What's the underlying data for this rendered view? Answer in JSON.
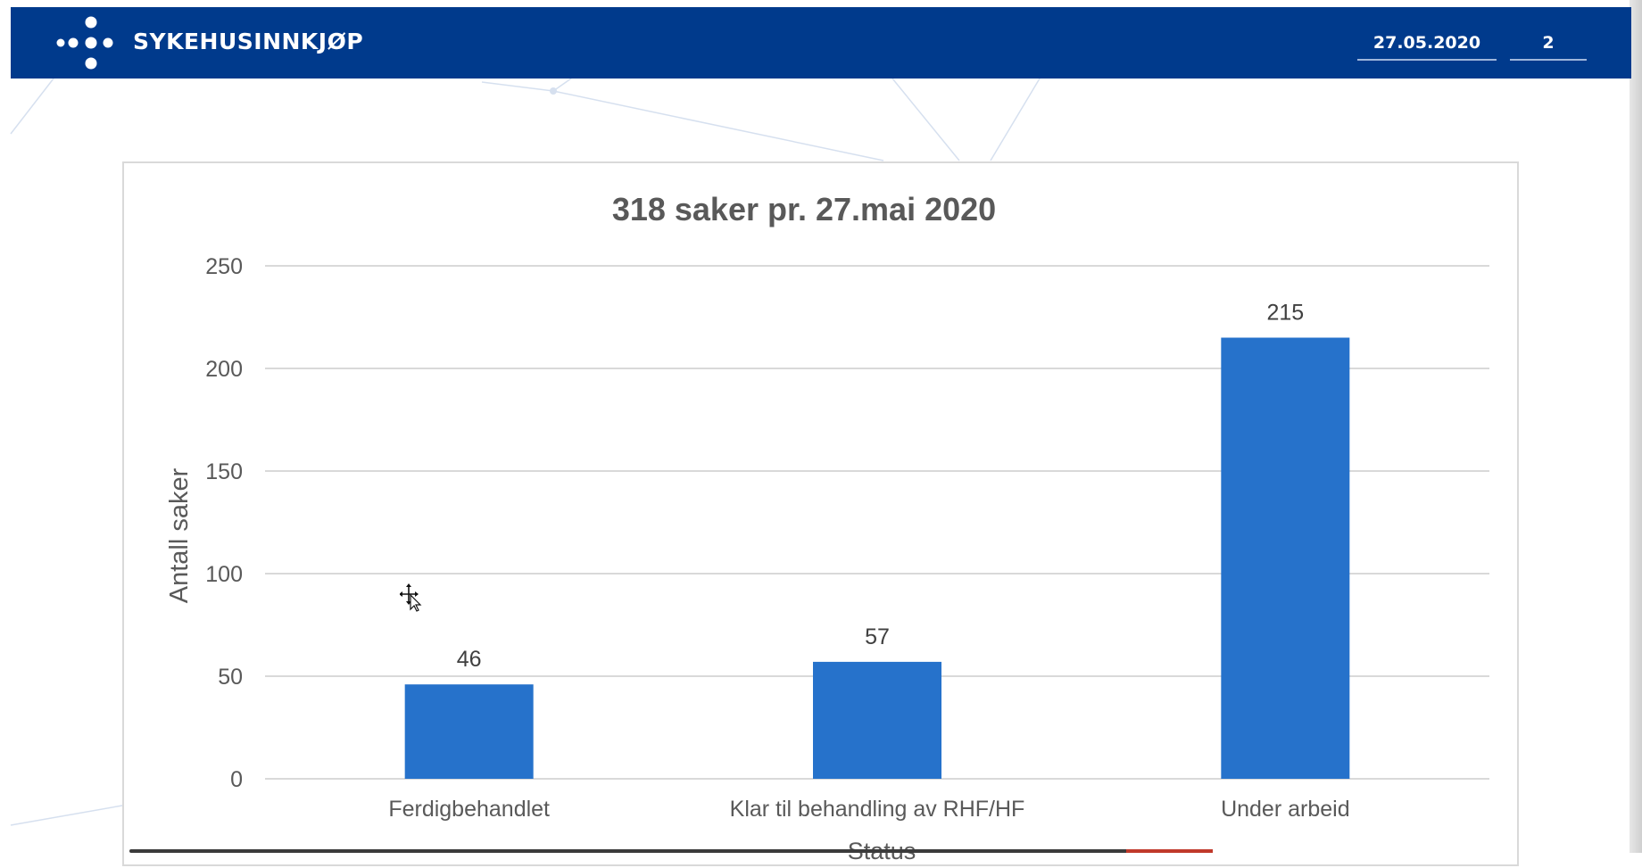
{
  "header": {
    "brand": "SYKEHUSINNKJØP",
    "date": "27.05.2020",
    "page_number": "2",
    "background_color": "#003a8c"
  },
  "icons": {
    "logo": "dots-cross-logo-icon",
    "cursor": "move-cursor-icon"
  },
  "chart_data": {
    "type": "bar",
    "title": "318 saker pr. 27.mai 2020",
    "xlabel": "Status",
    "ylabel": "Antall saker",
    "categories": [
      "Ferdigbehandlet",
      "Klar til behandling av RHF/HF",
      "Under arbeid"
    ],
    "values": [
      46,
      57,
      215
    ],
    "value_labels": [
      "46",
      "57",
      "215"
    ],
    "ylim": [
      0,
      250
    ],
    "yticks": [
      "0",
      "50",
      "100",
      "150",
      "200",
      "250"
    ],
    "grid": true,
    "legend": "none",
    "bar_color": "#2672cb"
  }
}
